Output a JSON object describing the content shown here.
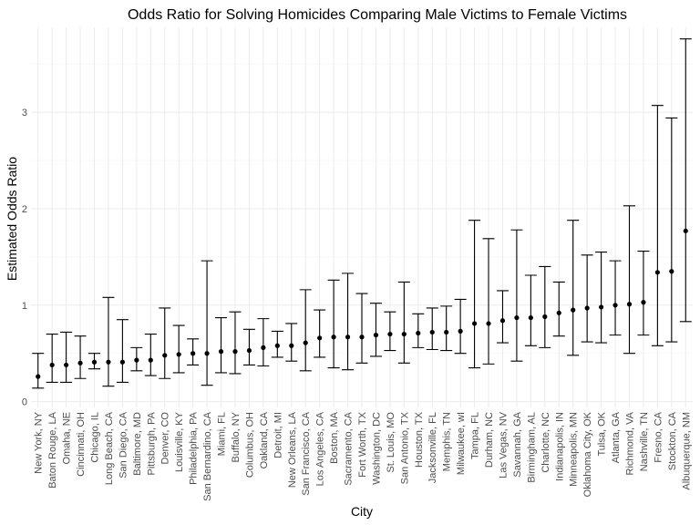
{
  "chart_data": {
    "type": "scatter",
    "title": "Odds Ratio for Solving Homicides Comparing Male Victims to Female Victims",
    "xlabel": "City",
    "ylabel": "Estimated Odds Ratio",
    "ylim": [
      -0.06,
      3.88
    ],
    "yticks": [
      0,
      1,
      2,
      3
    ],
    "grid": true,
    "error_bars": true,
    "categories": [
      "New York, NY",
      "Baton Rouge, LA",
      "Omaha, NE",
      "Cincinnati, OH",
      "Chicago, IL",
      "Long Beach, CA",
      "San Diego, CA",
      "Baltimore, MD",
      "Pittsburgh, PA",
      "Denver, CO",
      "Louisville, KY",
      "Philadelphia, PA",
      "San Bernardino, CA",
      "Miami, FL",
      "Buffalo, NY",
      "Columbus, OH",
      "Oakland, CA",
      "Detroit, MI",
      "New Orleans, LA",
      "San Francisco, CA",
      "Los Angeles, CA",
      "Boston, MA",
      "Sacramento, CA",
      "Fort Worth, TX",
      "Washington, DC",
      "St. Louis, MO",
      "San Antonio, TX",
      "Houston, TX",
      "Jacksonville, FL",
      "Memphis, TN",
      "Milwaukee, wI",
      "Tampa, FL",
      "Durham, NC",
      "Las Vegas, NV",
      "Savannah, GA",
      "Birmingham, AL",
      "Charlotte, NC",
      "Indianapolis, IN",
      "Minneapolis, MN",
      "Oklahoma City, OK",
      "Tulsa, OK",
      "Atlanta, GA",
      "Richmond, VA",
      "Nashville, TN",
      "Fresno, CA",
      "Stockton, CA",
      "Albuquerque, NM"
    ],
    "values": [
      0.26,
      0.38,
      0.38,
      0.4,
      0.41,
      0.41,
      0.41,
      0.43,
      0.43,
      0.48,
      0.49,
      0.5,
      0.5,
      0.52,
      0.52,
      0.53,
      0.56,
      0.58,
      0.58,
      0.61,
      0.66,
      0.67,
      0.67,
      0.67,
      0.69,
      0.7,
      0.7,
      0.71,
      0.72,
      0.72,
      0.73,
      0.81,
      0.81,
      0.84,
      0.87,
      0.87,
      0.88,
      0.92,
      0.95,
      0.97,
      0.98,
      1.0,
      1.01,
      1.03,
      1.34,
      1.35,
      1.77
    ],
    "lower": [
      0.14,
      0.2,
      0.2,
      0.24,
      0.34,
      0.16,
      0.2,
      0.32,
      0.27,
      0.24,
      0.3,
      0.38,
      0.17,
      0.3,
      0.29,
      0.38,
      0.37,
      0.46,
      0.42,
      0.32,
      0.46,
      0.35,
      0.33,
      0.4,
      0.47,
      0.53,
      0.4,
      0.56,
      0.54,
      0.53,
      0.5,
      0.35,
      0.39,
      0.61,
      0.42,
      0.58,
      0.56,
      0.68,
      0.48,
      0.62,
      0.61,
      0.69,
      0.5,
      0.69,
      0.58,
      0.62,
      0.83
    ],
    "upper": [
      0.5,
      0.7,
      0.72,
      0.68,
      0.5,
      1.08,
      0.85,
      0.56,
      0.7,
      0.97,
      0.79,
      0.65,
      1.46,
      0.87,
      0.93,
      0.75,
      0.86,
      0.73,
      0.81,
      1.16,
      0.95,
      1.26,
      1.33,
      1.12,
      1.02,
      0.93,
      1.24,
      0.91,
      0.97,
      0.99,
      1.06,
      1.88,
      1.69,
      1.15,
      1.78,
      1.31,
      1.4,
      1.24,
      1.88,
      1.52,
      1.55,
      1.46,
      2.03,
      1.56,
      3.07,
      2.94,
      3.76
    ]
  }
}
